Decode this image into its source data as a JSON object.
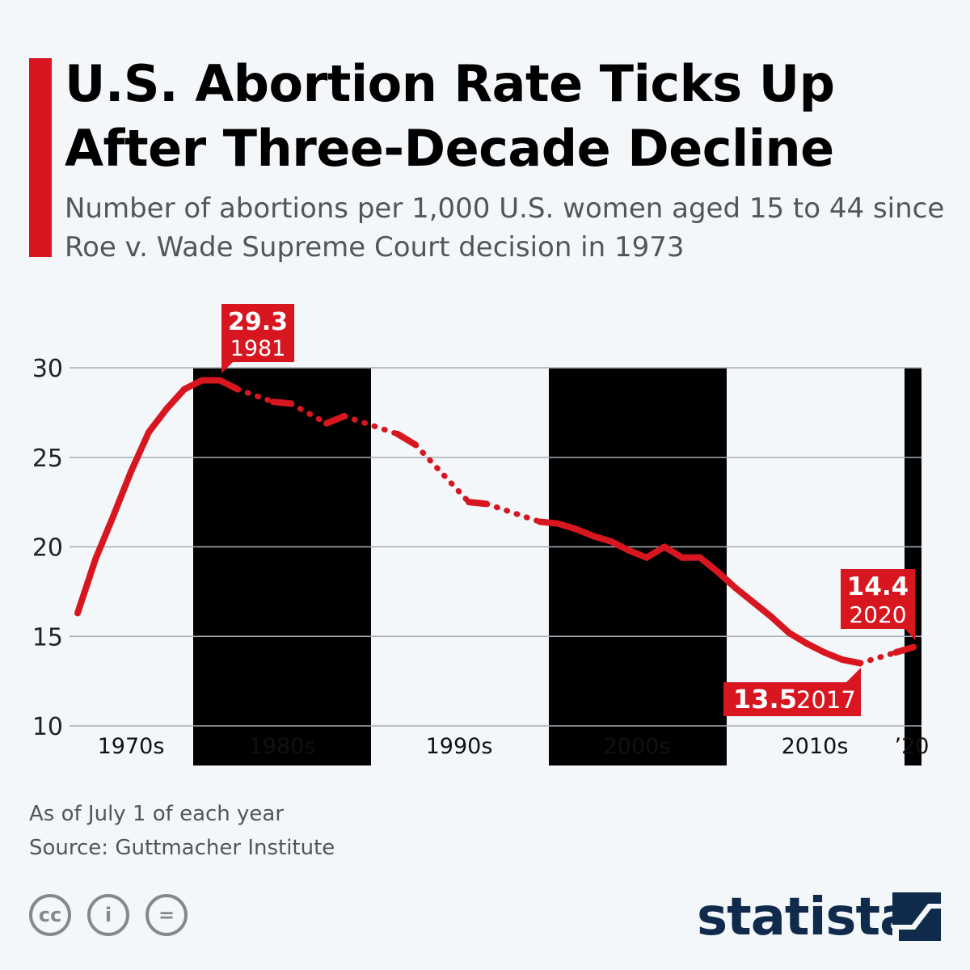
{
  "title": "U.S. Abortion Rate Ticks Up After Three-Decade Decline",
  "subtitle": "Number of abortions per 1,000 U.S. women aged 15 to 44 since Roe v. Wade Supreme Court decision in 1973",
  "footnote": "As of July 1 of each year",
  "source": "Source: Guttmacher Institute",
  "brand": "statista",
  "colors": {
    "line": "#d7161f",
    "band": "#e9eff7",
    "text": "#555555"
  },
  "chart_data": {
    "type": "line",
    "ylim": [
      10,
      30
    ],
    "yticks": [
      10,
      15,
      20,
      25,
      30
    ],
    "xlim": [
      1973,
      2020
    ],
    "decade_labels": [
      "1970s",
      "1980s",
      "1990s",
      "2000s",
      "2010s",
      "’20"
    ],
    "grid": true,
    "note": "missing years connected with dotted line",
    "x": [
      1973,
      1974,
      1975,
      1976,
      1977,
      1978,
      1979,
      1980,
      1981,
      1982,
      1984,
      1985,
      1987,
      1988,
      1991,
      1992,
      1995,
      1996,
      1999,
      2000,
      2001,
      2002,
      2003,
      2004,
      2005,
      2006,
      2007,
      2008,
      2009,
      2010,
      2011,
      2012,
      2013,
      2014,
      2015,
      2016,
      2017,
      2019,
      2020
    ],
    "y": [
      16.3,
      19.3,
      21.7,
      24.2,
      26.4,
      27.7,
      28.8,
      29.3,
      29.3,
      28.8,
      28.1,
      28.0,
      26.9,
      27.3,
      26.3,
      25.7,
      22.5,
      22.4,
      21.4,
      21.3,
      21.0,
      20.6,
      20.3,
      19.8,
      19.4,
      20.0,
      19.4,
      19.4,
      18.6,
      17.7,
      16.9,
      16.1,
      15.2,
      14.6,
      14.1,
      13.7,
      13.5,
      14.1,
      14.4
    ],
    "annotations": [
      {
        "value": "29.3",
        "year": "1981"
      },
      {
        "value": "13.5",
        "year": "2017"
      },
      {
        "value": "14.4",
        "year": "2020"
      }
    ]
  }
}
